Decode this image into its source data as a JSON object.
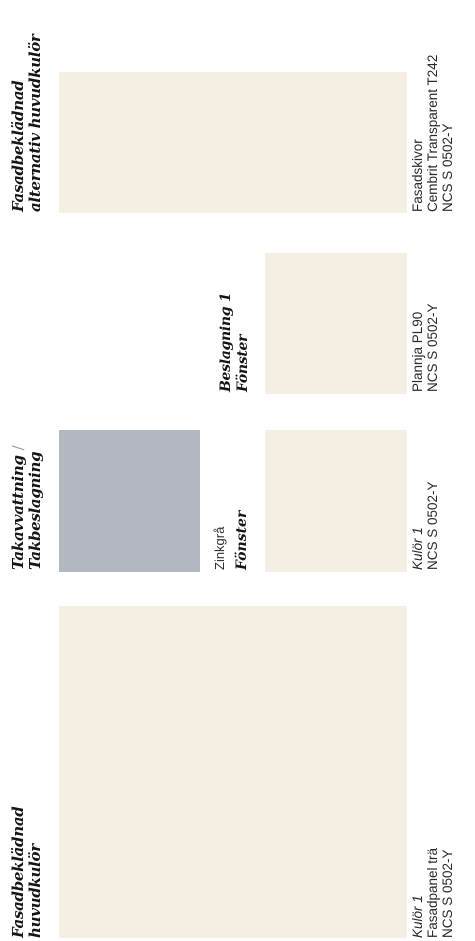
{
  "colors": {
    "ncs_s_0502_y": "#f5eee3",
    "zinkgra": "#b3b7bf"
  },
  "groups": {
    "fasad_huvud": {
      "heading_line1": "Fasadbeklädnad",
      "heading_line2": "huvudkulör",
      "kulor": "Kulör 1",
      "material": "Fasadpanel trä",
      "ncs": "NCS S 0502-Y"
    },
    "takavvattning": {
      "heading_line1": "Takavvattning",
      "heading_slash": "/",
      "heading_line2": "Takbeslagning",
      "color_name": "Zinkgrå"
    },
    "fonster_1": {
      "heading": "Fönster",
      "kulor": "Kulör 1",
      "ncs": "NCS S 0502-Y"
    },
    "beslagning": {
      "heading_line1": "Beslagning 1",
      "heading_line2": "Fönster",
      "material": "Plannja PL90",
      "ncs": "NCS S 0502-Y"
    },
    "fasad_alt": {
      "heading_line1": "Fasadbeklädnad",
      "heading_line2": "alternativ huvudkulör",
      "type": "Fasadskivor",
      "material": "Cembrit Transparent T242",
      "ncs": "NCS S 0502-Y"
    }
  }
}
